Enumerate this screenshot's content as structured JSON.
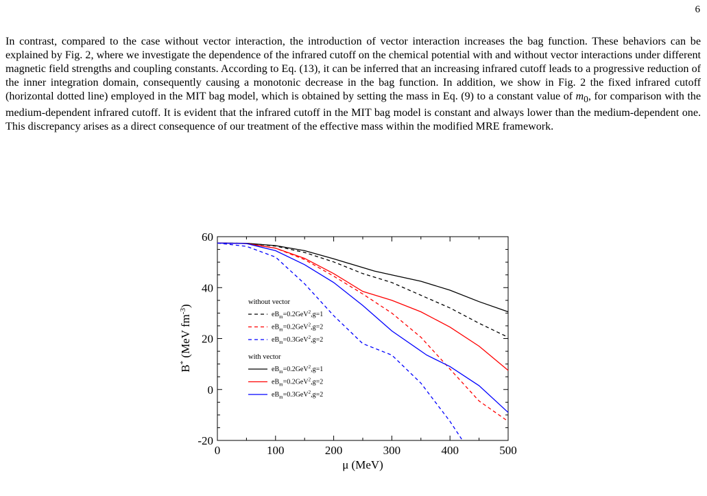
{
  "page": {
    "number": "6"
  },
  "paragraph": {
    "before_m0": "In contrast, compared to the case without vector interaction, the introduction of vector interaction increases the bag function. These behaviors can be explained by Fig. 2, where we investigate the dependence of the infrared cutoff on the chemical potential with and without vector interactions under different magnetic field strengths and coupling constants. According to Eq. (13), it can be inferred that an increasing infrared cutoff leads to a progressive reduction of the inner integration domain, consequently causing a monotonic decrease in the bag function. In addition, we show in Fig. 2 the fixed infrared cutoff (horizontal dotted line) employed in the MIT bag model, which is obtained by setting the mass in Eq. (9) to a constant value of ",
    "m0_symbol": "m",
    "m0_subscript": "0",
    "after_m0": ", for comparison with the medium-dependent infrared cutoff. It is evident that the infrared cutoff in the MIT bag model is constant and always lower than the medium-dependent one. This discrepancy arises as a direct consequence of our treatment of the effective mass within the modified MRE framework."
  },
  "chart_data": {
    "type": "line",
    "xlabel": "μ (MeV)",
    "ylabel": "B* (MeV fm⁻³)",
    "ylabel_main": "B",
    "ylabel_sup": "*",
    "ylabel_rest": " (MeV fm",
    "ylabel_exp": "-3",
    "ylabel_end": ")",
    "xlim": [
      0,
      500
    ],
    "ylim": [
      -20,
      60
    ],
    "xticks": [
      0,
      100,
      200,
      300,
      400,
      500
    ],
    "yticks": [
      -20,
      0,
      20,
      40,
      60
    ],
    "grid": false,
    "legend_placement": "middle-left",
    "legend_groups": [
      {
        "title": "without vector",
        "entries": [
          "eBm=0.2GeV2,g=1",
          "eBm=0.2GeV2,g=2",
          "eBm=0.3GeV2,g=2"
        ]
      },
      {
        "title": "with vector",
        "entries": [
          "eBm=0.2GeV2,g=1",
          "eBm=0.2GeV2,g=2",
          "eBm=0.3GeV2,g=2"
        ]
      }
    ],
    "series": [
      {
        "name": "without vector eBm=0.2GeV2,g=1",
        "color": "#000000",
        "dash": true,
        "x": [
          0,
          50,
          100,
          150,
          200,
          250,
          300,
          350,
          400,
          450,
          500
        ],
        "y": [
          57.5,
          57.4,
          56.3,
          53.8,
          50.1,
          45.5,
          42.0,
          37.0,
          32.0,
          26.0,
          20.5
        ]
      },
      {
        "name": "without vector eBm=0.2GeV2,g=2",
        "color": "#ff0000",
        "dash": true,
        "x": [
          0,
          50,
          100,
          150,
          200,
          250,
          300,
          350,
          400,
          450,
          500
        ],
        "y": [
          57.5,
          57.3,
          55.5,
          51.0,
          44.5,
          37.5,
          30.0,
          20.5,
          8.0,
          -4.5,
          -12.5
        ]
      },
      {
        "name": "without vector eBm=0.3GeV2,g=2",
        "color": "#0000ff",
        "dash": true,
        "x": [
          0,
          50,
          100,
          150,
          200,
          250,
          300,
          350,
          400,
          420
        ],
        "y": [
          57.5,
          56.2,
          52.0,
          41.5,
          29.0,
          18.0,
          13.5,
          2.5,
          -12.5,
          -19.5
        ]
      },
      {
        "name": "with vector eBm=0.2GeV2,g=1",
        "color": "#000000",
        "dash": false,
        "x": [
          0,
          50,
          100,
          150,
          200,
          270,
          300,
          350,
          400,
          450,
          500
        ],
        "y": [
          57.5,
          57.4,
          56.5,
          54.5,
          51.3,
          46.5,
          45.0,
          42.5,
          39.0,
          34.5,
          30.5
        ]
      },
      {
        "name": "with vector eBm=0.2GeV2,g=2",
        "color": "#ff0000",
        "dash": false,
        "x": [
          0,
          50,
          100,
          150,
          200,
          250,
          300,
          350,
          400,
          450,
          500
        ],
        "y": [
          57.5,
          57.3,
          55.5,
          51.5,
          45.5,
          38.5,
          35.0,
          30.5,
          24.5,
          17.0,
          7.5
        ]
      },
      {
        "name": "with vector eBm=0.3GeV2,g=2",
        "color": "#0000ff",
        "dash": false,
        "x": [
          0,
          50,
          100,
          150,
          200,
          250,
          300,
          360,
          400,
          450,
          500
        ],
        "y": [
          57.5,
          57.3,
          54.5,
          49.0,
          42.0,
          33.0,
          23.0,
          13.5,
          9.0,
          1.5,
          -9.0
        ]
      }
    ]
  }
}
